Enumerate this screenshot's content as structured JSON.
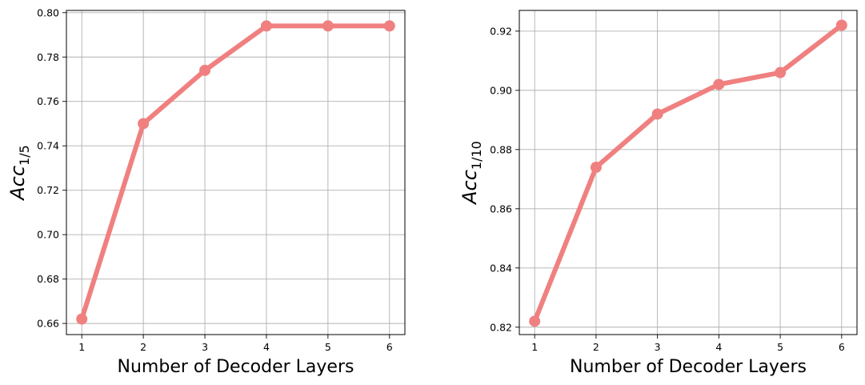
{
  "chart_data": [
    {
      "type": "line",
      "xlabel": "Number of Decoder Layers",
      "ylabel_main": "Acc",
      "ylabel_sub": "1/5",
      "x": [
        1,
        2,
        3,
        4,
        5,
        6
      ],
      "values": [
        0.662,
        0.75,
        0.774,
        0.794,
        0.794,
        0.794
      ],
      "xlim": [
        0.75,
        6.25
      ],
      "ylim": [
        0.655,
        0.801
      ],
      "xticks": [
        "1",
        "2",
        "3",
        "4",
        "5",
        "6"
      ],
      "yticks": [
        "0.66",
        "0.68",
        "0.70",
        "0.72",
        "0.74",
        "0.76",
        "0.78",
        "0.80"
      ],
      "ytick_values": [
        0.66,
        0.68,
        0.7,
        0.72,
        0.74,
        0.76,
        0.78,
        0.8
      ],
      "grid": true,
      "color": "#f08080"
    },
    {
      "type": "line",
      "xlabel": "Number of Decoder Layers",
      "ylabel_main": "Acc",
      "ylabel_sub": "1/10",
      "x": [
        1,
        2,
        3,
        4,
        5,
        6
      ],
      "values": [
        0.822,
        0.874,
        0.892,
        0.902,
        0.906,
        0.922
      ],
      "xlim": [
        0.75,
        6.25
      ],
      "ylim": [
        0.8175,
        0.927
      ],
      "xticks": [
        "1",
        "2",
        "3",
        "4",
        "5",
        "6"
      ],
      "yticks": [
        "0.82",
        "0.84",
        "0.86",
        "0.88",
        "0.90",
        "0.92"
      ],
      "ytick_values": [
        0.82,
        0.84,
        0.86,
        0.88,
        0.9,
        0.92
      ],
      "grid": true,
      "color": "#f08080"
    }
  ]
}
